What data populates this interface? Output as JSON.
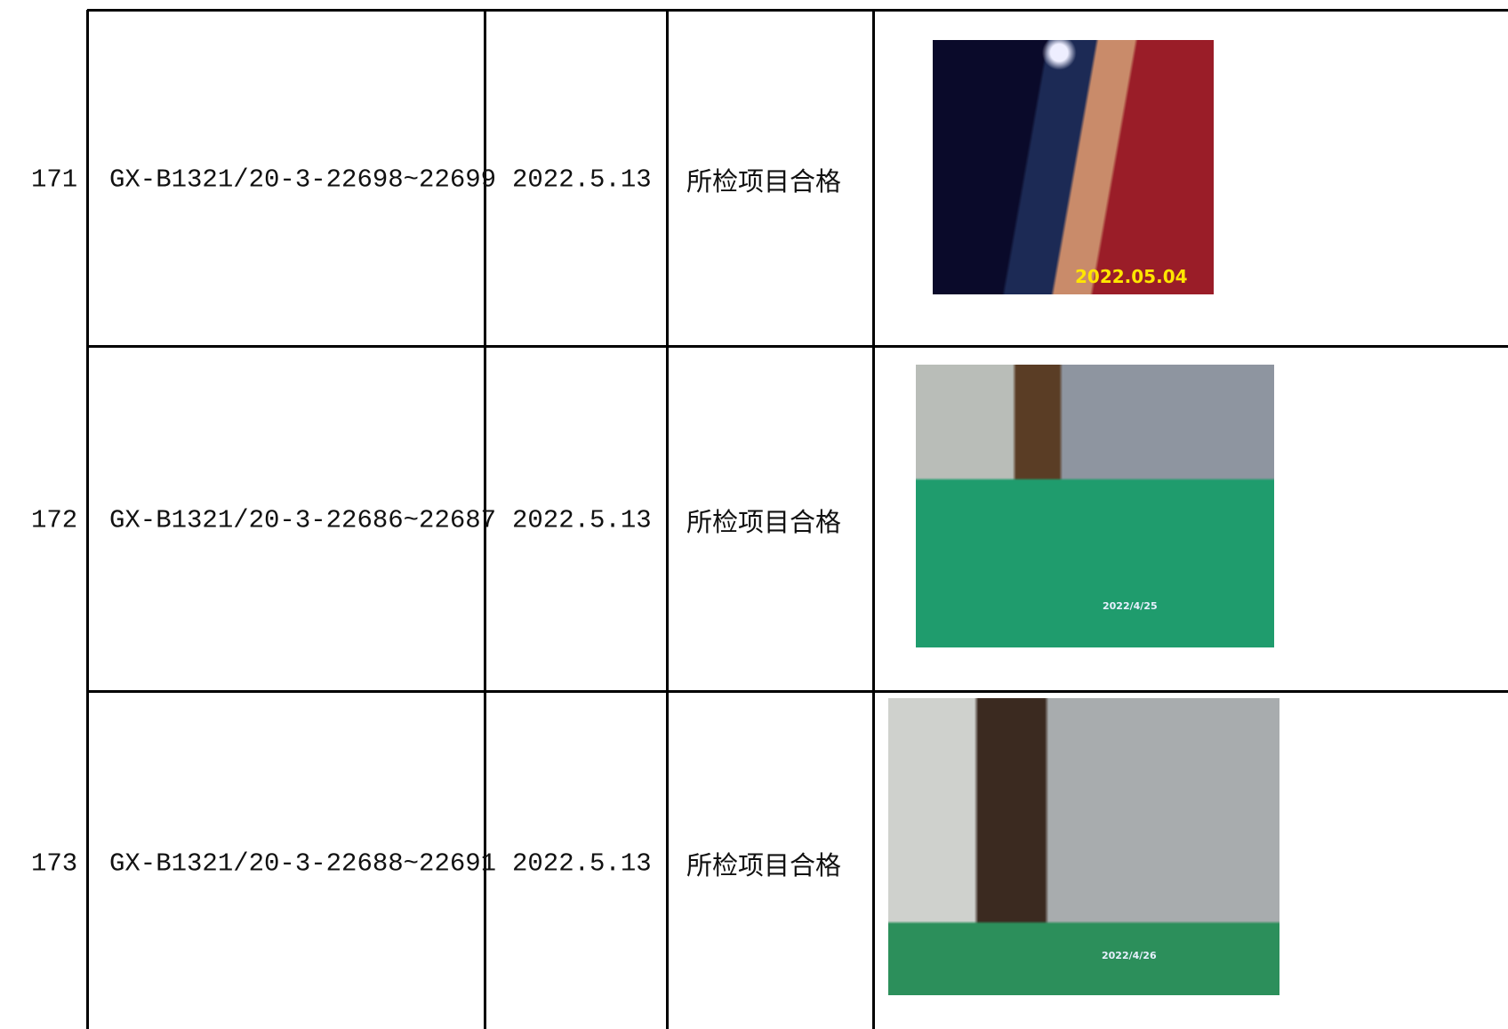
{
  "table": {
    "rows": [
      {
        "no": "171",
        "code": "GX-B1321/20-3-22698~22699",
        "date": "2022.5.13",
        "result": "所检项目合格",
        "photo_stamp": "2022.05.04"
      },
      {
        "no": "172",
        "code": "GX-B1321/20-3-22686~22687",
        "date": "2022.5.13",
        "result": "所检项目合格",
        "photo_stamp": "2022/4/25"
      },
      {
        "no": "173",
        "code": "GX-B1321/20-3-22688~22691",
        "date": "2022.5.13",
        "result": "所检项目合格",
        "photo_stamp": "2022/4/26"
      }
    ]
  }
}
